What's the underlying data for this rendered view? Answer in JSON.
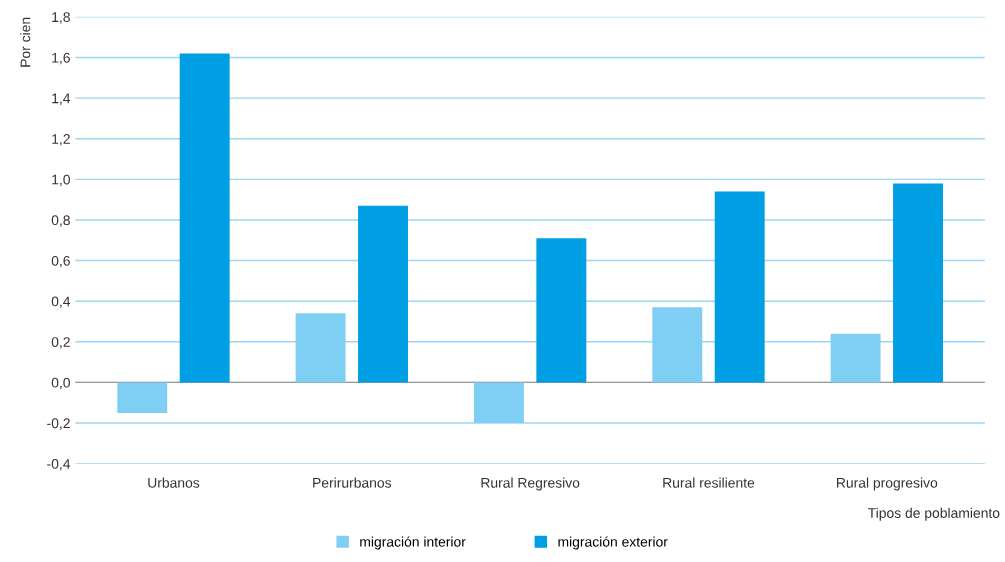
{
  "chart_data": {
    "type": "bar",
    "ylabel": "Por cien",
    "xlabel": "Tipos de poblamiento",
    "categories": [
      "Urbanos",
      "Perirurbanos",
      "Rural Regresivo",
      "Rural resiliente",
      "Rural progresivo"
    ],
    "series": [
      {
        "name": "migración interior",
        "color": "#7fcff5",
        "values": [
          -0.15,
          0.34,
          -0.2,
          0.37,
          0.24
        ]
      },
      {
        "name": "migración exterior",
        "color": "#009ee3",
        "values": [
          1.62,
          0.87,
          0.71,
          0.94,
          0.98
        ]
      }
    ],
    "ylim": [
      -0.4,
      1.8
    ],
    "yticks": [
      {
        "value": -0.4,
        "label": "-0,4"
      },
      {
        "value": -0.2,
        "label": "-0,2"
      },
      {
        "value": 0,
        "label": "0,0"
      },
      {
        "value": 0.2,
        "label": "0,2"
      },
      {
        "value": 0.4,
        "label": "0,4"
      },
      {
        "value": 0.6,
        "label": "0,6"
      },
      {
        "value": 0.8,
        "label": "0,8"
      },
      {
        "value": 1.0,
        "label": "1,0"
      },
      {
        "value": 1.2,
        "label": "1,2"
      },
      {
        "value": 1.4,
        "label": "1,4"
      },
      {
        "value": 1.6,
        "label": "1,6"
      },
      {
        "value": 1.8,
        "label": "1,8"
      }
    ],
    "grid": "y",
    "legend": "bottom"
  }
}
